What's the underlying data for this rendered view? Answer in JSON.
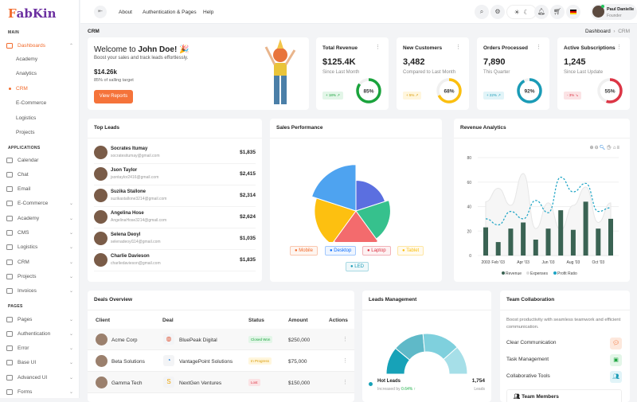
{
  "brand": {
    "logo": "FabKin"
  },
  "sidebar": {
    "main_label": "MAIN",
    "dashboards": "Dashboards",
    "dash_items": [
      "Academy",
      "Analytics",
      "CRM",
      "E-Commerce",
      "Logistics",
      "Projects"
    ],
    "apps_label": "APPLICATIONS",
    "apps": [
      {
        "label": "Calendar",
        "icon": "calendar-icon"
      },
      {
        "label": "Chat",
        "icon": "chat-icon"
      },
      {
        "label": "Email",
        "icon": "email-icon"
      },
      {
        "label": "E-Commerce",
        "icon": "cart-icon",
        "chev": true
      },
      {
        "label": "Academy",
        "icon": "academy-icon",
        "chev": true
      },
      {
        "label": "CMS",
        "icon": "book-icon",
        "chev": true
      },
      {
        "label": "Logistics",
        "icon": "truck-icon",
        "chev": true
      },
      {
        "label": "CRM",
        "icon": "crm-icon",
        "chev": true
      },
      {
        "label": "Projects",
        "icon": "monitor-icon",
        "chev": true
      },
      {
        "label": "Invoices",
        "icon": "invoice-icon",
        "chev": true
      }
    ],
    "pages_label": "PAGES",
    "pages": [
      {
        "label": "Pages",
        "icon": "pages-icon"
      },
      {
        "label": "Authentication",
        "icon": "user-lock-icon"
      },
      {
        "label": "Error",
        "icon": "bug-icon"
      },
      {
        "label": "Base UI",
        "icon": "base-ui-icon"
      },
      {
        "label": "Advanced UI",
        "icon": "pen-icon"
      },
      {
        "label": "Forms",
        "icon": "forms-icon"
      }
    ]
  },
  "topbar": {
    "links": [
      "About",
      "Authentication & Pages",
      "Help"
    ],
    "user_name": "Paul Danielle",
    "user_role": "Founder"
  },
  "page": {
    "title": "CRM",
    "breadcrumb": [
      "Dashboard",
      "CRM"
    ]
  },
  "welcome": {
    "greeting": "Welcome to ",
    "name": "John Doe!",
    "subtitle": "Boost your sales and track leads effortlessly.",
    "amount": "$14.26k",
    "target": "85% of salling target",
    "button": "View Reports"
  },
  "stats": [
    {
      "title": "Total Revenue",
      "value": "$125.4K",
      "sub": "Since Last Month",
      "badge": "+ 18% ↗",
      "percent": 85,
      "color": "#1aa33c",
      "badge_bg": "#e3f6e8",
      "badge_fg": "#1aa33c"
    },
    {
      "title": "New Customers",
      "value": "3,482",
      "sub": "Compared to Last Month",
      "badge": "+ 5% ↗",
      "percent": 68,
      "color": "#fbbf0f",
      "badge_bg": "#fff6dd",
      "badge_fg": "#d99a00"
    },
    {
      "title": "Orders Processed",
      "value": "7,890",
      "sub": "This Quarter",
      "badge": "+ 22% ↗",
      "percent": 92,
      "color": "#1a9bb6",
      "badge_bg": "#e1f4f8",
      "badge_fg": "#1a9bb6"
    },
    {
      "title": "Active Subscriptions",
      "value": "1,245",
      "sub": "Since Last Update",
      "badge": "- 3% ↘",
      "percent": 55,
      "color": "#dc3545",
      "badge_bg": "#fbe3e5",
      "badge_fg": "#dc3545"
    }
  ],
  "top_leads": {
    "title": "Top Leads",
    "items": [
      {
        "name": "Socrates Itumay",
        "email": "socratesitumay@gmail.com",
        "amount": "$1,835"
      },
      {
        "name": "Json Taylor",
        "email": "jsontaylor2416@gmail.com",
        "amount": "$2,415"
      },
      {
        "name": "Suzika Stallone",
        "email": "suzikastallone3214@gmail.com",
        "amount": "$2,314"
      },
      {
        "name": "Angelina Hose",
        "email": "AngelinaHose3214@gmail.com",
        "amount": "$2,624"
      },
      {
        "name": "Selena Deoyl",
        "email": "selenadeoyl114@gmail.com",
        "amount": "$1,035"
      },
      {
        "name": "Charlie Davieson",
        "email": "charliedavieson@gmail.com",
        "amount": "$1,835"
      }
    ]
  },
  "chart_data": [
    {
      "type": "polarArea",
      "title": "Sales Performance",
      "categories": [
        "Mobile",
        "Desktop",
        "Laptop",
        "Tablet",
        "LED"
      ],
      "legend_colors": [
        "#f26b2c",
        "#0d6efd",
        "#dc3545",
        "#fbbf0f",
        "#1a9bb6"
      ],
      "slice_colors": [
        "#5b6fe0",
        "#36c18d",
        "#f36b6d",
        "#fdc010",
        "#4ea3f0"
      ],
      "values": [
        31,
        35,
        38,
        42,
        47
      ],
      "legend": "bottom"
    },
    {
      "type": "bar+area+line",
      "title": "Revenue Analytics",
      "x": [
        "Jan '03",
        "Feb '03",
        "Mar '03",
        "Apr '03",
        "May '03",
        "Jun '03",
        "Jul '03",
        "Aug '03",
        "Sep '03",
        "Oct '03",
        "Nov '03"
      ],
      "tick_labels": [
        "2003",
        "Feb '03",
        "Apr '03",
        "Jun '03",
        "Aug '03",
        "Oct '03"
      ],
      "ylim": [
        0,
        80
      ],
      "yticks": [
        0,
        20,
        40,
        60,
        80
      ],
      "grid": true,
      "legend": "bottom",
      "series": [
        {
          "name": "Revenue",
          "type": "bar",
          "color": "#3a6353",
          "values": [
            23,
            11,
            22,
            27,
            13,
            22,
            37,
            21,
            44,
            22,
            30
          ]
        },
        {
          "name": "Expenses",
          "type": "area",
          "color": "#e6e6e6",
          "values": [
            44,
            55,
            41,
            67,
            22,
            43,
            21,
            41,
            56,
            27,
            43
          ]
        },
        {
          "name": "Profit Ratio",
          "type": "line",
          "color": "#1aa3c4",
          "values": [
            30,
            25,
            36,
            30,
            45,
            35,
            64,
            52,
            59,
            36,
            39
          ]
        }
      ]
    }
  ],
  "deals": {
    "title": "Deals Overview",
    "columns": [
      "Client",
      "Deal",
      "Status",
      "Amount",
      "Actions"
    ],
    "rows": [
      {
        "client": "Acme Corp",
        "deal": "BluePeak Digital",
        "status": "Closed Won",
        "amount": "$250,000",
        "sbg": "#e3f6e8",
        "sfg": "#1aa33c"
      },
      {
        "client": "Beta Solutions",
        "deal": "VantagePoint Solutions",
        "status": "In Progress",
        "amount": "$75,000",
        "sbg": "#fff6dd",
        "sfg": "#d99a00"
      },
      {
        "client": "Gamma Tech",
        "deal": "NextGen Ventures",
        "status": "Lost",
        "amount": "$150,000",
        "sbg": "#fbe3e5",
        "sfg": "#dc3545"
      }
    ]
  },
  "leads_mgmt": {
    "title": "Leads Management",
    "gauge": [
      0.22,
      0.25,
      0.3,
      0.23
    ],
    "gauge_colors": [
      "#17a2b8",
      "#5fb9c8",
      "#7fd0dd",
      "#a6dfe8"
    ],
    "item": {
      "label": "Hot Leads",
      "prefix": "Increased by ",
      "change": "0.64% ↑",
      "value": "1,754",
      "unit": "Leads"
    }
  },
  "team": {
    "title": "Team Collaboration",
    "desc": "Boost productivity with seamless teamwork and efficient communication.",
    "items": [
      {
        "label": "Clear Communication",
        "bg": "#fde8dd",
        "fg": "#f26b2c"
      },
      {
        "label": "Task Management",
        "bg": "#e3f6e8",
        "fg": "#1aa33c"
      },
      {
        "label": "Collaborative Tools",
        "bg": "#e1f4f8",
        "fg": "#1a9bb6"
      }
    ],
    "members": "Team Members"
  }
}
